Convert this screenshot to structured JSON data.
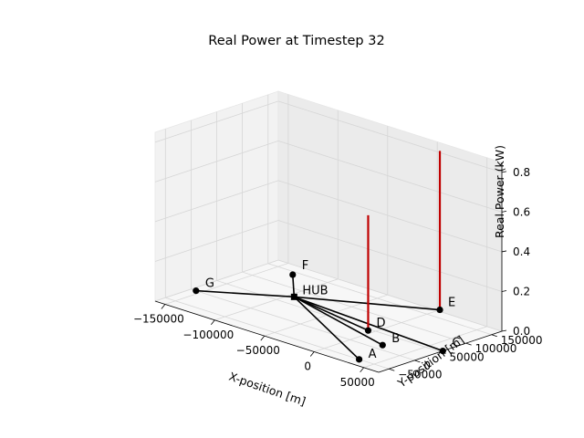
{
  "chart_data": {
    "type": "3d-network",
    "title": "Real Power at Timestep 32",
    "xlabel": "X-position [m]",
    "ylabel": "Y-position [m]",
    "zlabel": "Real Power (kW)",
    "x_ticks": [
      -150000,
      -100000,
      -50000,
      0,
      50000
    ],
    "x_tick_labels": [
      "−150000",
      "−100000",
      "−50000",
      "0",
      "50000"
    ],
    "y_ticks": [
      -50000,
      0,
      50000,
      100000,
      150000
    ],
    "y_tick_labels": [
      "−50000",
      "0",
      "50000",
      "100000",
      "150000"
    ],
    "z_ticks": [
      0.0,
      0.2,
      0.4,
      0.6,
      0.8
    ],
    "z_tick_labels": [
      "0.0",
      "0.2",
      "0.4",
      "0.6",
      "0.8"
    ],
    "hub": "HUB",
    "nodes": [
      {
        "name": "HUB",
        "power_kw": 0.0
      },
      {
        "name": "A",
        "power_kw": 0.0
      },
      {
        "name": "B",
        "power_kw": 0.0
      },
      {
        "name": "C",
        "power_kw": 0.0
      },
      {
        "name": "D",
        "power_kw": 0.58
      },
      {
        "name": "E",
        "power_kw": 0.8
      },
      {
        "name": "F",
        "power_kw": 0.0
      },
      {
        "name": "G",
        "power_kw": 0.0
      }
    ],
    "edges": [
      [
        "HUB",
        "A"
      ],
      [
        "HUB",
        "B"
      ],
      [
        "HUB",
        "C"
      ],
      [
        "HUB",
        "D"
      ],
      [
        "HUB",
        "E"
      ],
      [
        "HUB",
        "F"
      ],
      [
        "HUB",
        "G"
      ]
    ],
    "colors": {
      "edge": "#000000",
      "power_bar": "#c00000",
      "node": "#000000",
      "pane": "#f2f2f2",
      "grid": "#d6d6d6"
    }
  }
}
